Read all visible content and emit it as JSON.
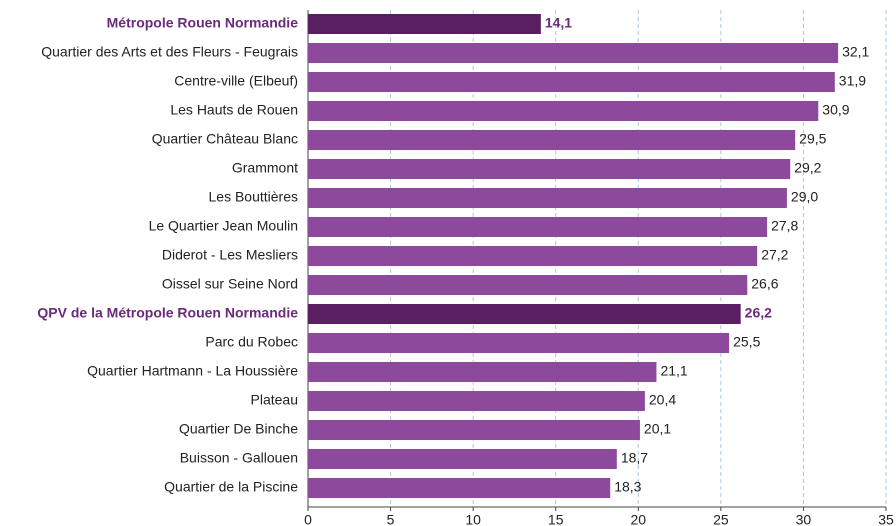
{
  "chart_data": {
    "type": "hbar",
    "categories": [
      "Métropole Rouen Normandie",
      "Quartier des Arts et des Fleurs - Feugrais",
      "Centre-ville (Elbeuf)",
      "Les Hauts de Rouen",
      "Quartier Château Blanc",
      "Grammont",
      "Les Bouttières",
      "Le Quartier Jean Moulin",
      "Diderot - Les Mesliers",
      "Oissel sur Seine Nord",
      "QPV de la Métropole Rouen Normandie",
      "Parc du Robec",
      "Quartier Hartmann - La Houssière",
      "Plateau",
      "Quartier De Binche",
      "Buisson - Gallouen",
      "Quartier de la Piscine"
    ],
    "values": [
      14.1,
      32.1,
      31.9,
      30.9,
      29.5,
      29.2,
      29.0,
      27.8,
      27.2,
      26.6,
      26.2,
      25.5,
      21.1,
      20.4,
      20.1,
      18.7,
      18.3
    ],
    "value_labels": [
      "14,1",
      "32,1",
      "31,9",
      "30,9",
      "29,5",
      "29,2",
      "29,0",
      "27,8",
      "27,2",
      "26,6",
      "26,2",
      "25,5",
      "21,1",
      "20,4",
      "20,1",
      "18,7",
      "18,3"
    ],
    "color": "#8d4a9d",
    "highlight_color": "#5a1f63",
    "highlight": [
      0,
      10
    ],
    "xlim": [
      0,
      35
    ],
    "xticks": [
      0,
      5,
      10,
      15,
      20,
      25,
      30,
      35
    ],
    "grid": true
  }
}
